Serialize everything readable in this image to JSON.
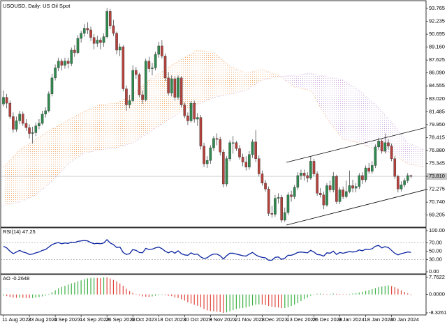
{
  "chart_data": [
    {
      "type": "candlestick",
      "title": "USOUSD, Daily: US Oil Spot",
      "categories": [
        "11 Aug 2023",
        null,
        null,
        null,
        null,
        null,
        null,
        null,
        "23 Aug 2023",
        null,
        null,
        null,
        null,
        null,
        null,
        null,
        "4 Sep 2023",
        null,
        null,
        null,
        null,
        null,
        null,
        null,
        "14 Sep 2023",
        null,
        null,
        null,
        null,
        null,
        null,
        null,
        "26 Sep 2023",
        null,
        null,
        null,
        null,
        null,
        null,
        null,
        "6 Oct 2023",
        null,
        null,
        null,
        null,
        null,
        null,
        null,
        "18 Oct 2023",
        null,
        null,
        null,
        null,
        null,
        null,
        null,
        "30 Oct 2023",
        null,
        null,
        null,
        null,
        null,
        null,
        null,
        "9 Nov 2023",
        null,
        null,
        null,
        null,
        null,
        null,
        null,
        "21 Nov 2023",
        null,
        null,
        null,
        null,
        null,
        null,
        null,
        "1 Dec 2023",
        null,
        null,
        null,
        null,
        null,
        null,
        null,
        "13 Dec 2023",
        null,
        null,
        null,
        null,
        null,
        null,
        null,
        "26 Dec 2023",
        null,
        null,
        null,
        null,
        null,
        null,
        null,
        "8 Jan 2024",
        null,
        null,
        null,
        null,
        null,
        null,
        null,
        "18 Jan 2024",
        null,
        null,
        null,
        null,
        null,
        null,
        null,
        "30 Jan 2024",
        null,
        null,
        null,
        null,
        null,
        null
      ],
      "ohlc": [
        [
          82.4,
          84.0,
          82.1,
          83.2
        ],
        [
          83.2,
          83.6,
          81.9,
          82.5
        ],
        [
          82.5,
          82.8,
          80.6,
          80.9
        ],
        [
          80.9,
          81.4,
          79.0,
          79.4
        ],
        [
          79.4,
          80.9,
          79.1,
          80.4
        ],
        [
          80.4,
          81.6,
          80.0,
          81.2
        ],
        [
          81.2,
          81.5,
          79.8,
          80.1
        ],
        [
          80.1,
          80.6,
          79.2,
          79.6
        ],
        [
          79.6,
          80.0,
          78.3,
          78.9
        ],
        [
          78.9,
          79.7,
          77.7,
          79.0
        ],
        [
          79.0,
          80.2,
          78.6,
          79.8
        ],
        [
          79.8,
          80.6,
          79.4,
          80.1
        ],
        [
          80.1,
          81.6,
          79.9,
          81.2
        ],
        [
          81.2,
          82.0,
          80.8,
          81.6
        ],
        [
          81.6,
          83.9,
          81.4,
          83.6
        ],
        [
          83.6,
          86.0,
          83.3,
          85.5
        ],
        [
          85.5,
          87.1,
          85.2,
          86.7
        ],
        [
          86.7,
          87.9,
          86.3,
          87.5
        ],
        [
          87.5,
          87.8,
          86.4,
          87.0
        ],
        [
          87.0,
          87.9,
          86.6,
          87.5
        ],
        [
          87.5,
          87.9,
          86.6,
          87.2
        ],
        [
          87.2,
          89.1,
          86.9,
          88.8
        ],
        [
          88.8,
          89.4,
          88.0,
          88.5
        ],
        [
          88.5,
          90.6,
          88.3,
          90.2
        ],
        [
          90.2,
          91.1,
          89.7,
          90.8
        ],
        [
          90.8,
          91.9,
          90.4,
          91.4
        ],
        [
          91.4,
          92.1,
          90.7,
          91.2
        ],
        [
          91.2,
          91.6,
          89.9,
          90.3
        ],
        [
          90.3,
          90.7,
          88.9,
          89.6
        ],
        [
          89.6,
          90.5,
          89.2,
          90.0
        ],
        [
          90.0,
          90.3,
          88.9,
          89.7
        ],
        [
          89.7,
          90.8,
          89.2,
          90.4
        ],
        [
          90.4,
          93.8,
          90.2,
          93.4
        ],
        [
          93.4,
          93.7,
          91.3,
          91.7
        ],
        [
          91.7,
          92.4,
          90.5,
          90.8
        ],
        [
          90.8,
          91.0,
          88.3,
          88.8
        ],
        [
          88.8,
          89.6,
          88.1,
          89.2
        ],
        [
          89.2,
          89.4,
          83.9,
          84.2
        ],
        [
          84.2,
          84.6,
          81.6,
          82.3
        ],
        [
          82.3,
          83.5,
          81.9,
          82.8
        ],
        [
          82.8,
          87.0,
          82.6,
          86.4
        ],
        [
          86.4,
          86.8,
          85.4,
          85.9
        ],
        [
          85.9,
          86.1,
          83.2,
          83.5
        ],
        [
          83.5,
          84.0,
          82.4,
          82.9
        ],
        [
          82.9,
          87.8,
          82.7,
          87.5
        ],
        [
          87.5,
          88.0,
          86.2,
          86.6
        ],
        [
          86.6,
          87.3,
          85.8,
          86.7
        ],
        [
          86.7,
          88.6,
          86.4,
          88.3
        ],
        [
          88.3,
          89.8,
          87.9,
          89.3
        ],
        [
          89.3,
          90.0,
          87.8,
          88.1
        ],
        [
          88.1,
          88.4,
          85.1,
          85.5
        ],
        [
          85.5,
          86.2,
          83.4,
          83.7
        ],
        [
          83.7,
          85.8,
          83.3,
          85.4
        ],
        [
          85.4,
          85.7,
          82.8,
          83.2
        ],
        [
          83.2,
          85.8,
          82.9,
          85.5
        ],
        [
          85.5,
          85.7,
          82.0,
          82.3
        ],
        [
          82.3,
          82.6,
          80.7,
          81.0
        ],
        [
          81.0,
          81.4,
          79.9,
          80.4
        ],
        [
          80.4,
          82.8,
          80.2,
          82.5
        ],
        [
          82.5,
          82.8,
          80.2,
          80.6
        ],
        [
          80.6,
          81.3,
          79.8,
          80.8
        ],
        [
          80.8,
          81.1,
          77.0,
          77.4
        ],
        [
          77.4,
          77.8,
          74.9,
          75.3
        ],
        [
          75.3,
          76.2,
          74.8,
          75.7
        ],
        [
          75.7,
          77.5,
          75.3,
          77.2
        ],
        [
          77.2,
          78.6,
          76.8,
          78.3
        ],
        [
          78.3,
          78.9,
          77.5,
          78.2
        ],
        [
          78.2,
          78.5,
          76.3,
          76.7
        ],
        [
          76.7,
          77.0,
          72.5,
          72.9
        ],
        [
          72.9,
          76.2,
          72.6,
          75.9
        ],
        [
          75.9,
          78.1,
          75.6,
          77.8
        ],
        [
          77.8,
          78.6,
          76.5,
          77.8
        ],
        [
          77.8,
          78.0,
          76.8,
          77.1
        ],
        [
          77.1,
          77.5,
          75.8,
          76.1
        ],
        [
          76.1,
          76.5,
          75.0,
          75.5
        ],
        [
          75.5,
          76.2,
          74.5,
          74.9
        ],
        [
          74.9,
          76.8,
          74.6,
          76.4
        ],
        [
          76.4,
          78.2,
          76.0,
          77.9
        ],
        [
          77.9,
          79.3,
          75.5,
          75.9
        ],
        [
          75.9,
          76.3,
          73.8,
          74.1
        ],
        [
          74.1,
          74.5,
          72.7,
          73.0
        ],
        [
          73.0,
          73.4,
          72.0,
          72.3
        ],
        [
          72.3,
          72.6,
          69.1,
          69.4
        ],
        [
          69.4,
          70.3,
          68.9,
          69.3
        ],
        [
          69.3,
          71.6,
          69.0,
          71.2
        ],
        [
          71.2,
          71.8,
          70.6,
          71.3
        ],
        [
          71.3,
          71.6,
          68.3,
          68.6
        ],
        [
          68.6,
          70.1,
          68.4,
          69.5
        ],
        [
          69.5,
          71.9,
          69.2,
          71.6
        ],
        [
          71.6,
          72.1,
          70.8,
          71.4
        ],
        [
          71.4,
          72.8,
          71.1,
          72.5
        ],
        [
          72.5,
          74.3,
          72.2,
          73.9
        ],
        [
          73.9,
          74.6,
          73.4,
          74.2
        ],
        [
          74.2,
          74.6,
          73.3,
          73.9
        ],
        [
          73.9,
          74.3,
          73.1,
          73.6
        ],
        [
          73.6,
          76.2,
          73.4,
          75.6
        ],
        [
          75.6,
          75.9,
          73.8,
          74.1
        ],
        [
          74.1,
          74.4,
          71.5,
          71.8
        ],
        [
          71.8,
          72.4,
          71.3,
          71.6
        ],
        [
          71.6,
          72.0,
          69.9,
          70.4
        ],
        [
          70.4,
          73.0,
          70.2,
          72.7
        ],
        [
          72.7,
          73.3,
          71.9,
          72.2
        ],
        [
          72.2,
          74.3,
          71.9,
          73.8
        ],
        [
          73.8,
          74.0,
          70.5,
          70.8
        ],
        [
          70.8,
          72.5,
          70.5,
          72.2
        ],
        [
          72.2,
          72.6,
          71.1,
          71.4
        ],
        [
          71.4,
          73.3,
          71.2,
          72.0
        ],
        [
          72.0,
          74.5,
          71.8,
          72.7
        ],
        [
          72.7,
          73.4,
          71.9,
          72.4
        ],
        [
          72.4,
          73.0,
          71.9,
          72.6
        ],
        [
          72.6,
          74.2,
          72.3,
          73.9
        ],
        [
          73.9,
          74.3,
          72.9,
          73.4
        ],
        [
          73.4,
          75.1,
          73.1,
          74.8
        ],
        [
          74.8,
          75.4,
          74.1,
          74.4
        ],
        [
          74.4,
          75.6,
          74.1,
          75.1
        ],
        [
          75.1,
          77.6,
          74.8,
          77.3
        ],
        [
          77.3,
          78.4,
          77.0,
          78.0
        ],
        [
          78.0,
          78.2,
          76.5,
          76.8
        ],
        [
          76.8,
          78.9,
          76.5,
          77.8
        ],
        [
          77.8,
          78.2,
          77.0,
          77.4
        ],
        [
          77.4,
          77.7,
          75.6,
          75.9
        ],
        [
          75.9,
          76.2,
          73.5,
          73.8
        ],
        [
          73.8,
          74.0,
          71.9,
          72.3
        ],
        [
          72.3,
          73.2,
          72.0,
          72.8
        ],
        [
          72.8,
          73.6,
          72.5,
          73.3
        ],
        [
          73.3,
          74.2,
          73.0,
          73.9
        ],
        [
          73.9,
          74.0,
          73.6,
          73.81
        ]
      ],
      "up_color": "#2f8a4f",
      "down_color": "#b5413c",
      "ylim": [
        67.77,
        94.51
      ],
      "yticks": [
        93.765,
        92.235,
        90.695,
        {
          "value": 89.16,
          "label": "89.160"
        },
        87.625,
        {
          "value": 86.09,
          "label": "86.090"
        },
        84.555,
        {
          "value": 83.02,
          "label": "83.020"
        },
        81.485,
        {
          "value": 79.95,
          "label": "79.950"
        },
        78.415,
        {
          "value": 76.88,
          "label": "76.880"
        },
        75.345,
        {
          "value": 73.81,
          "label": "73.810"
        },
        72.275,
        {
          "value": 70.74,
          "label": "70.740"
        },
        69.205
      ],
      "last_price": 73.81,
      "cloud": {
        "x": [
          0,
          5,
          10,
          15,
          20,
          25,
          30,
          35,
          40,
          45,
          50,
          55,
          60,
          65,
          70,
          75,
          80,
          85,
          90,
          95,
          100,
          105,
          110,
          115,
          120,
          125,
          130
        ],
        "span_a": [
          74.89,
          76.96,
          78.2,
          79.44,
          80.52,
          81.51,
          82.34,
          82.51,
          83.58,
          85.24,
          86.48,
          87.72,
          88.8,
          88.55,
          86.89,
          86.07,
          86.48,
          85.82,
          84.41,
          84.0,
          80.69,
          78.2,
          77.79,
          76.96,
          76.55,
          75.31,
          74.89
        ],
        "span_b": [
          70.34,
          70.75,
          71.58,
          73.24,
          75.31,
          76.55,
          76.96,
          77.21,
          77.79,
          79.03,
          80.27,
          81.51,
          82.34,
          83.17,
          83.58,
          84.0,
          85.24,
          85.65,
          85.82,
          86.07,
          85.65,
          85.24,
          84.0,
          82.34,
          80.27,
          77.79,
          76.96
        ],
        "up_color": "#f29a55",
        "down_color": "#c49ad8"
      },
      "channel": {
        "x": [
          87.5,
          130.7
        ],
        "upper": [
          75.47,
          79.61
        ],
        "lower": [
          68.02,
          72.24
        ],
        "color": "#000000"
      }
    },
    {
      "type": "line",
      "title": "RSI(14) 47.25",
      "values": [
        62,
        58,
        50,
        44,
        48,
        52,
        48,
        46,
        42,
        43,
        46,
        48,
        52,
        54,
        60,
        66,
        69,
        71,
        68,
        70,
        69,
        72,
        71,
        74,
        75,
        76,
        75,
        71,
        68,
        69,
        68,
        70,
        78,
        70,
        66,
        59,
        60,
        47,
        42,
        44,
        54,
        52,
        47,
        46,
        57,
        54,
        55,
        58,
        60,
        56,
        50,
        46,
        50,
        45,
        51,
        44,
        41,
        40,
        46,
        42,
        43,
        36,
        32,
        34,
        40,
        43,
        43,
        39,
        31,
        39,
        45,
        45,
        43,
        41,
        39,
        38,
        43,
        47,
        41,
        37,
        35,
        34,
        28,
        28,
        35,
        36,
        30,
        33,
        40,
        40,
        43,
        47,
        48,
        47,
        46,
        52,
        48,
        42,
        41,
        38,
        46,
        45,
        50,
        42,
        47,
        45,
        47,
        49,
        48,
        49,
        53,
        51,
        55,
        54,
        56,
        62,
        64,
        58,
        61,
        59,
        52,
        45,
        41,
        44,
        46,
        48,
        47.25
      ],
      "color": "#0a24a0",
      "ylim": [
        0,
        100
      ],
      "yticks": [
        {
          "value": 100,
          "label": "100.00"
        },
        {
          "value": 70,
          "label": "70.00"
        },
        {
          "value": 50,
          "label": "50.00"
        },
        {
          "value": 30,
          "label": "30.00"
        },
        {
          "value": 0,
          "label": "0.00"
        }
      ],
      "levels": [
        70,
        30
      ]
    },
    {
      "type": "bar",
      "title": "AO -0.2648",
      "values": [
        -0.5,
        -0.8,
        -1.1,
        -1.4,
        -1.5,
        -1.4,
        -1.5,
        -1.6,
        -1.7,
        -1.6,
        -1.4,
        -1.2,
        -0.9,
        -0.5,
        0.2,
        1.0,
        1.9,
        2.8,
        3.4,
        3.9,
        4.5,
        5.0,
        5.4,
        5.9,
        6.4,
        6.9,
        7.3,
        7.5,
        7.6,
        7.5,
        7.4,
        7.7622,
        7.7,
        7.2,
        6.6,
        5.9,
        5.0,
        3.9,
        2.6,
        1.5,
        0.7,
        0.2,
        -0.4,
        -0.9,
        -1.0,
        -1.1,
        -0.9,
        -0.6,
        -0.3,
        -0.2,
        -0.3,
        -0.6,
        -0.8,
        -1.3,
        -1.6,
        -2.2,
        -2.8,
        -3.6,
        -4.1,
        -4.7,
        -5.1,
        -5.8,
        -6.6,
        -7.2,
        -7.5,
        -7.6,
        -7.8,
        -8.0,
        -8.3261,
        -8.1,
        -7.6,
        -7.1,
        -6.6,
        -6.3,
        -6.1,
        -5.9,
        -5.5,
        -5.0,
        -4.6,
        -4.5,
        -4.6,
        -4.8,
        -5.2,
        -5.6,
        -5.8,
        -5.9,
        -6.2,
        -6.1,
        -5.8,
        -5.2,
        -4.6,
        -3.9,
        -3.0,
        -2.1,
        -1.4,
        -0.6,
        0.0,
        0.3,
        0.4,
        0.2,
        0.1,
        0.2,
        0.4,
        0.3,
        0.2,
        0.1,
        0.0,
        0.2,
        0.4,
        0.6,
        0.9,
        1.2,
        1.6,
        2.0,
        2.4,
        2.9,
        3.3,
        3.6,
        3.9,
        4.1,
        3.8,
        3.3,
        2.6,
        1.9,
        1.1,
        0.5,
        -0.2648
      ],
      "up_color": "#3cb043",
      "down_color": "#e0453a",
      "ylim": [
        -8.3261,
        7.7622
      ],
      "yticks": [
        7.7622,
        {
          "value": 0,
          "label": "0.0000"
        },
        -8.3261
      ]
    }
  ]
}
